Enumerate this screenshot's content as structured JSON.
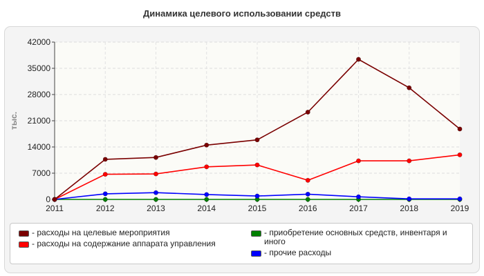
{
  "chart_data": {
    "type": "line",
    "title": "Динамика целевого использовании средств",
    "ylabel": "тыс.",
    "xlabel": "",
    "x": [
      "2011",
      "2012",
      "2013",
      "2014",
      "2015",
      "2016",
      "2017",
      "2018",
      "2019"
    ],
    "ylim": [
      0,
      42000
    ],
    "yticks": [
      "0",
      "7000",
      "14000",
      "21000",
      "28000",
      "35000",
      "42000"
    ],
    "grid": true,
    "legend_position": "bottom",
    "series": [
      {
        "name": "- расходы на целевые мероприятия",
        "color": "#7a0000",
        "values": [
          0,
          10700,
          11200,
          14500,
          15900,
          23300,
          37400,
          29800,
          18800
        ]
      },
      {
        "name": "- расходы на содержание аппарата управления",
        "color": "#ff0000",
        "values": [
          0,
          6700,
          6800,
          8700,
          9200,
          5100,
          10300,
          10300,
          11900
        ]
      },
      {
        "name": "- приобретение основных средств, инвентаря и иного",
        "color": "#008000",
        "values": [
          0,
          0,
          0,
          0,
          0,
          0,
          0,
          0,
          0
        ]
      },
      {
        "name": "- прочие расходы",
        "color": "#0000ff",
        "values": [
          0,
          1500,
          1800,
          1300,
          900,
          1400,
          700,
          150,
          150
        ]
      }
    ]
  }
}
